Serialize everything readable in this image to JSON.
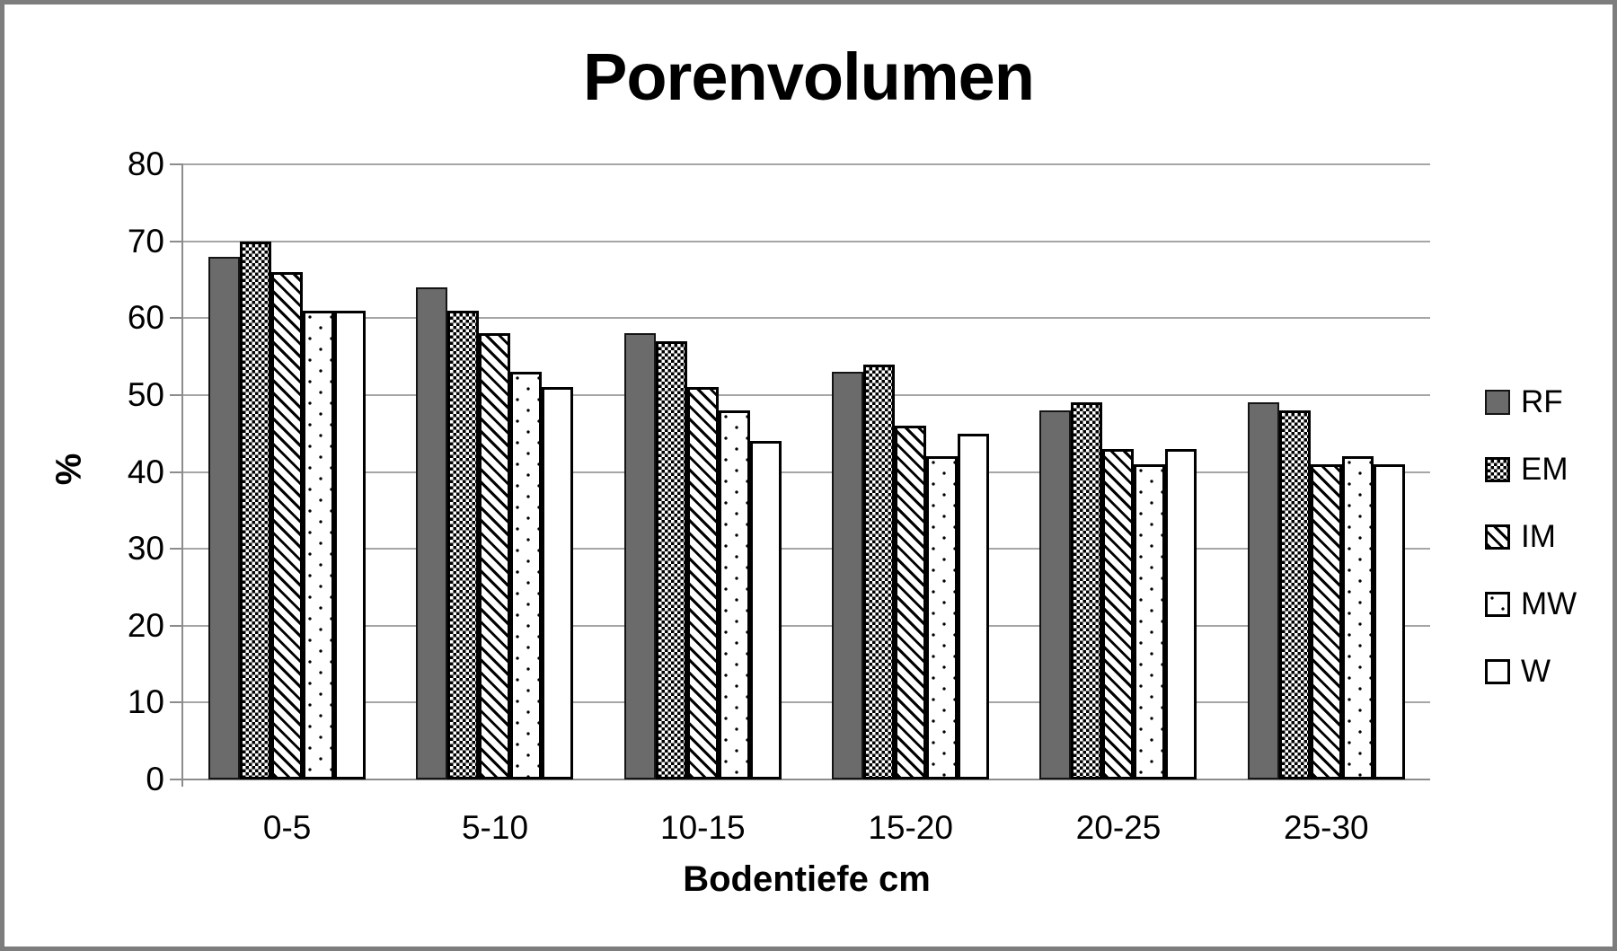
{
  "chart_data": {
    "type": "bar",
    "title": "Porenvolumen",
    "xlabel": "Bodentiefe cm",
    "ylabel": "%",
    "categories": [
      "0-5",
      "5-10",
      "10-15",
      "15-20",
      "20-25",
      "25-30"
    ],
    "series": [
      {
        "name": "RF",
        "pattern": "solid-gray",
        "values": [
          68,
          64,
          58,
          53,
          48,
          49
        ]
      },
      {
        "name": "EM",
        "pattern": "checkerboard",
        "values": [
          70,
          61,
          57,
          54,
          49,
          48
        ]
      },
      {
        "name": "IM",
        "pattern": "diagonal-stripes",
        "values": [
          66,
          58,
          51,
          46,
          43,
          41
        ]
      },
      {
        "name": "MW",
        "pattern": "dots",
        "values": [
          61,
          53,
          48,
          42,
          41,
          42
        ]
      },
      {
        "name": "W",
        "pattern": "plain-white",
        "values": [
          61,
          51,
          44,
          45,
          43,
          41
        ]
      }
    ],
    "ylim": [
      0,
      80
    ],
    "ytick_step": 10,
    "yticks": [
      0,
      10,
      20,
      30,
      40,
      50,
      60,
      70,
      80
    ],
    "grid": true,
    "legend_position": "right"
  },
  "colors": {
    "bar_gray": "#6b6b6b",
    "gridline": "#a6a6a6",
    "axis": "#8c8c8c",
    "frame": "#7d7d7d",
    "text": "#000000",
    "background": "#ffffff"
  }
}
